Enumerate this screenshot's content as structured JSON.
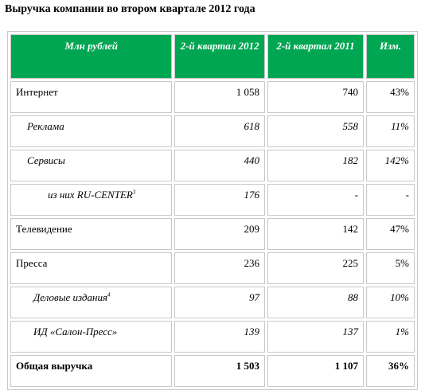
{
  "title": "Выручка компании во втором квартале 2012 года",
  "table": {
    "header": [
      "Млн рублей",
      "2-й квартал 2012",
      "2-й квартал 2011",
      "Изм."
    ],
    "rows": [
      [
        "Интернет",
        "1 058",
        "740",
        "43%"
      ],
      [
        "Реклама",
        "618",
        "558",
        "11%"
      ],
      [
        "Сервисы",
        "440",
        "182",
        "142%"
      ],
      [
        "из них RU-CENTER",
        "176",
        "-",
        "-"
      ],
      [
        "Телевидение",
        "209",
        "142",
        "47%"
      ],
      [
        "Пресса",
        "236",
        "225",
        "5%"
      ],
      [
        "Деловые издания",
        "97",
        "88",
        "10%"
      ],
      [
        "ИД «Салон-Пресс»",
        "139",
        "137",
        "1%"
      ],
      [
        "Общая выручка",
        "1 503",
        "1 107",
        "36%"
      ]
    ],
    "footnotes": {
      "3": "3",
      "6": "4"
    }
  }
}
